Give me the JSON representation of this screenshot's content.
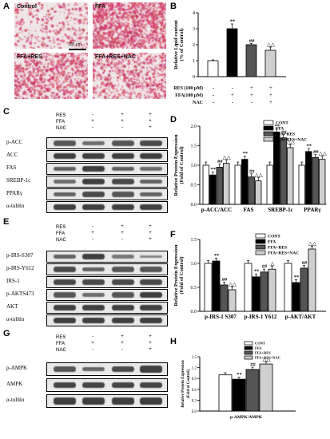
{
  "panels": {
    "A": "A",
    "B": "B",
    "C": "C",
    "D": "D",
    "E": "E",
    "F": "F",
    "G": "G",
    "H": "H"
  },
  "micrographs": [
    {
      "label": "Control",
      "density": 0.15
    },
    {
      "label": "FFA",
      "density": 0.85
    },
    {
      "label": "FFA+RES",
      "density": 0.55
    },
    {
      "label": "FFA+RES+NAC",
      "density": 0.4
    }
  ],
  "scalebar": "100 μm",
  "treatments_short": {
    "RES": "RES",
    "FFA": "FFA",
    "NAC": "NAC"
  },
  "treatment_matrix": {
    "RES": [
      "-",
      "-",
      "+",
      "+"
    ],
    "FFA": [
      "-",
      "+",
      "+",
      "+"
    ],
    "NAC": [
      "-",
      "-",
      "-",
      "+"
    ]
  },
  "treatment_b": {
    "RES": "RES (100 μM)",
    "FFA": "FFA(100 μM)",
    "NAC": "NAC",
    "RES_vals": [
      "-",
      "-",
      "+",
      "+"
    ],
    "FFA_vals": [
      "-",
      "+",
      "+",
      "+"
    ],
    "NAC_vals": [
      "-",
      "-",
      "-",
      "+"
    ]
  },
  "blotC": [
    "p-ACC",
    "ACC",
    "FAS",
    "SREBP-1c",
    "PPARγ",
    "α-tublin"
  ],
  "blotE": [
    "p-IRS-S307",
    "p-IRS-Y612",
    "IRS-1",
    "p-AKTS473",
    "AKT",
    "α-tublin"
  ],
  "blotG": [
    "p-AMPK",
    "AMPK",
    "α-tublin"
  ],
  "chart_data": [
    {
      "panel": "B",
      "type": "bar",
      "ylabel": "Relative Lipid content\n(% of Control)",
      "ylim": [
        0,
        4
      ],
      "yticks": [
        0,
        1,
        2,
        3,
        4
      ],
      "values": [
        1.0,
        3.0,
        2.0,
        1.65
      ],
      "errors": [
        0.05,
        0.3,
        0.08,
        0.2
      ],
      "sig": [
        "",
        "**",
        "##",
        "△△"
      ],
      "colors": [
        "#ffffff",
        "#000000",
        "#555555",
        "#cfcfcf"
      ]
    },
    {
      "panel": "D",
      "type": "bar",
      "ylabel": "Relative Protein Expression\n(Fold of Control)",
      "ylim": [
        0.0,
        2.0
      ],
      "yticks": [
        "0.0",
        "0.5",
        "1.0",
        "1.5",
        "2.0"
      ],
      "categories": [
        "p-ACC/ACC",
        "FAS",
        "SREBP-1c",
        "PPARγ"
      ],
      "series": [
        {
          "name": "CONT",
          "values": [
            1.0,
            1.0,
            1.0,
            1.0
          ],
          "sig": [
            "",
            "",
            "",
            ""
          ]
        },
        {
          "name": "FFA",
          "values": [
            0.75,
            1.15,
            1.85,
            1.35
          ],
          "sig": [
            "**",
            "**",
            "**",
            "**"
          ]
        },
        {
          "name": "FFA+RES",
          "values": [
            0.95,
            0.7,
            1.7,
            1.2
          ],
          "sig": [
            "##",
            "##",
            "##",
            "##"
          ]
        },
        {
          "name": "FFA+RES+NAC",
          "values": [
            1.05,
            0.6,
            1.45,
            1.15
          ],
          "sig": [
            "△△",
            "△△",
            "△△",
            "△△"
          ]
        }
      ],
      "colors": [
        "#ffffff",
        "#000000",
        "#555555",
        "#cfcfcf"
      ]
    },
    {
      "panel": "F",
      "type": "bar",
      "ylabel": "Relative Protein Expression\n(Fold of Control)",
      "ylim": [
        0.0,
        1.5
      ],
      "yticks": [
        "0.0",
        "0.5",
        "1.0",
        "1.5"
      ],
      "categories": [
        "p-IRS-1 S307",
        "p-IRS-1 Y612",
        "p-AKT/AKT"
      ],
      "series": [
        {
          "name": "CONT",
          "values": [
            1.0,
            1.0,
            1.0
          ],
          "sig": [
            "",
            "",
            ""
          ]
        },
        {
          "name": "FFA",
          "values": [
            1.05,
            0.72,
            0.6
          ],
          "sig": [
            "**",
            "**",
            "**"
          ]
        },
        {
          "name": "FFA+RES",
          "values": [
            0.55,
            0.82,
            0.9
          ],
          "sig": [
            "##",
            "##",
            "##"
          ]
        },
        {
          "name": "FFA+RES+NAC",
          "values": [
            0.45,
            0.88,
            1.3
          ],
          "sig": [
            "△△",
            "△",
            "△△"
          ]
        }
      ],
      "colors": [
        "#ffffff",
        "#000000",
        "#555555",
        "#cfcfcf"
      ]
    },
    {
      "panel": "H",
      "type": "bar",
      "ylabel": "Relative Protein Expression\n(Fold of Control)",
      "ylim": [
        0.0,
        1.5
      ],
      "yticks": [
        "0.0",
        "0.3",
        "0.6",
        "0.9",
        "1.2",
        "1.5"
      ],
      "categories": [
        "p-AMPK/AMPK"
      ],
      "series": [
        {
          "name": "CONT",
          "values": [
            1.0
          ],
          "sig": [
            ""
          ]
        },
        {
          "name": "FFA",
          "values": [
            0.88
          ],
          "sig": [
            "**"
          ]
        },
        {
          "name": "FFA+RES",
          "values": [
            1.15
          ],
          "sig": [
            "##"
          ]
        },
        {
          "name": "FFA+RES+NAC",
          "values": [
            1.3
          ],
          "sig": [
            "△△"
          ]
        }
      ],
      "colors": [
        "#ffffff",
        "#000000",
        "#555555",
        "#cfcfcf"
      ]
    }
  ]
}
